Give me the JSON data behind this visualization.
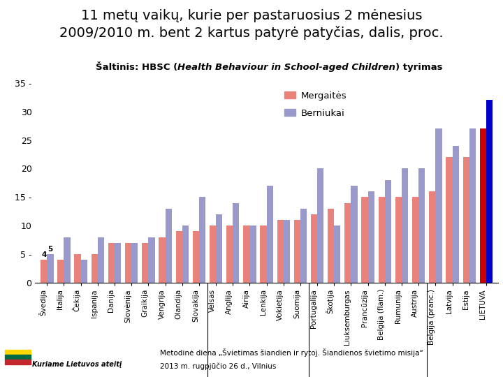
{
  "title": "11 metų vaikų, kurie per pastaruosius 2 mėnesius\n2009/2010 m. bent 2 kartus patyrė patyčias, dalis, proc.",
  "subtitle_part1": "Šaltinis: HBSC (",
  "subtitle_italic": "Health Behaviour in School-aged Children",
  "subtitle_part2": ") tyrimas",
  "categories": [
    "Švedija",
    "Italija",
    "Čekija",
    "Ispanija",
    "Danija",
    "Slovėnija",
    "Graikija",
    "Vengrija",
    "Olandija",
    "Slovakija",
    "Velsas",
    "Anglija",
    "Airija",
    "Lenkija",
    "Vokietija",
    "Suomija",
    "Portugalija",
    "Škotija",
    "Liuksemburgas",
    "Prancūzija",
    "Belgija (flam.)",
    "Rumunija",
    "Austrija",
    "Belgija (pranc.)",
    "Latvija",
    "Estija",
    "LIETUVA"
  ],
  "girls": [
    4,
    4,
    5,
    5,
    7,
    7,
    7,
    8,
    9,
    9,
    10,
    10,
    10,
    10,
    11,
    11,
    12,
    13,
    14,
    15,
    15,
    15,
    15,
    16,
    22,
    22,
    27
  ],
  "boys": [
    5,
    8,
    4,
    8,
    7,
    7,
    8,
    13,
    10,
    15,
    12,
    14,
    10,
    17,
    11,
    13,
    20,
    10,
    17,
    16,
    18,
    20,
    20,
    27,
    24,
    27,
    32
  ],
  "girls_color": "#E8827A",
  "boys_color": "#9999CC",
  "lietuva_girls_color": "#CC0000",
  "lietuva_boys_color": "#0000CC",
  "background_color": "#FFFFFF",
  "ylim": [
    0,
    35
  ],
  "yticks": [
    0,
    5,
    10,
    15,
    20,
    25,
    30,
    35
  ],
  "dash_ticks": [
    5,
    15,
    35
  ],
  "annotation_girls": "4",
  "annotation_boys": "5",
  "legend_girls": "Mergaitės",
  "legend_boys": "Berniukai",
  "footer_text1": "Metodinė diena „Švietimas šiandien ir rytoj. Šiandienos švietimo misija“",
  "footer_text2": "2013 m. rugpjūčio 26 d., Vilnius",
  "footer_bg": "#FFD700",
  "logo_text": "Kuriame Lietuvos ateitį",
  "title_fontsize": 14,
  "subtitle_fontsize": 9.5,
  "bar_width": 0.38
}
